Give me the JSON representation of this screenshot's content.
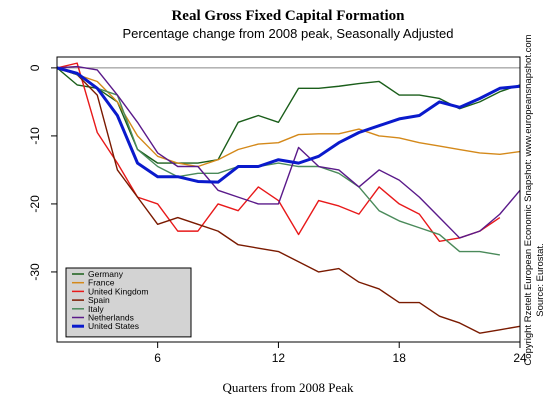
{
  "chart_data": {
    "type": "line",
    "title": "Real Gross Fixed Capital Formation",
    "subtitle": "Percentage change from 2008 peak, Seasonally Adjusted",
    "x_label": "Quarters from 2008 Peak",
    "side_notes": [
      "Copyright Rzetelt European Economic Snapshot: www.europeansnapshot.com",
      "Source: Eurostat."
    ],
    "x": [
      1,
      2,
      3,
      4,
      5,
      6,
      7,
      8,
      9,
      10,
      11,
      12,
      13,
      14,
      15,
      16,
      17,
      18,
      19,
      20,
      21,
      22,
      23,
      24
    ],
    "xlim": [
      1,
      24
    ],
    "xticks": [
      6,
      12,
      18,
      24
    ],
    "ylim": [
      -40.3,
      1.6
    ],
    "yticks": [
      0,
      -10,
      -20,
      -30
    ],
    "legend": "bottom-left",
    "series": [
      {
        "name": "Germany",
        "color": "#1a5e1a",
        "values": [
          0,
          -2.5,
          -3,
          -5,
          -12,
          -14,
          -14,
          -14,
          -13.5,
          -8,
          -7,
          -8,
          -3,
          -3,
          -2.7,
          -2.3,
          -2,
          -4,
          -4,
          -4.5,
          -6,
          -5,
          -3.5,
          -2.5
        ]
      },
      {
        "name": "France",
        "color": "#d4891a",
        "values": [
          0,
          -1,
          -2,
          -5,
          -10,
          -13,
          -14,
          -14.5,
          -13.5,
          -12,
          -11.2,
          -11,
          -9.8,
          -9.7,
          -9.7,
          -9,
          -10,
          -10.3,
          -11,
          -11.5,
          -12,
          -12.5,
          -12.7,
          -12.3
        ]
      },
      {
        "name": "United Kingdom",
        "color": "#e8191a",
        "values": [
          0,
          0.7,
          -9.5,
          -14,
          -19,
          -20,
          -24,
          -24,
          -20,
          -21,
          -17.5,
          -19.5,
          -24.5,
          -19.5,
          -20.3,
          -21.5,
          -17.5,
          -20,
          -21.5,
          -25.5,
          -25,
          -24,
          -22,
          null
        ]
      },
      {
        "name": "Spain",
        "color": "#7a1a00",
        "values": [
          0,
          -1,
          -4,
          -15,
          -19,
          -23,
          -22,
          -23,
          -24,
          -26,
          -26.5,
          -27,
          -28.5,
          -30,
          -29.5,
          -31.5,
          -32.5,
          -34.5,
          -34.5,
          -36.5,
          -37.5,
          -39,
          -38.5,
          -38
        ]
      },
      {
        "name": "Italy",
        "color": "#4a8a5a",
        "values": [
          0,
          -1,
          -3,
          -4,
          -12,
          -14.5,
          -16,
          -15.5,
          -15.5,
          -14.5,
          -14.5,
          -14,
          -14.5,
          -14.5,
          -15.5,
          -17.5,
          -21,
          -22.5,
          -23.5,
          -24.5,
          -27,
          -27,
          -27.5,
          null
        ]
      },
      {
        "name": "Netherlands",
        "color": "#5a1a8a",
        "values": [
          0,
          0.2,
          -0.3,
          -4,
          -8,
          -12.5,
          -14.5,
          -14.5,
          -18,
          -19,
          -20,
          -20,
          -11.7,
          -14.5,
          -15,
          -17.5,
          -15,
          -16.5,
          -19,
          -22,
          -25,
          -24,
          -21.5,
          -18
        ]
      },
      {
        "name": "United States",
        "color": "#0a1acc",
        "values": [
          0,
          -0.8,
          -3,
          -7,
          -14,
          -16,
          -16,
          -16.7,
          -16.8,
          -14.5,
          -14.5,
          -13.5,
          -14,
          -13,
          -11,
          -9.5,
          -8.5,
          -7.5,
          -7,
          -5,
          -5.8,
          -4.5,
          -3,
          -2.7
        ]
      }
    ]
  }
}
